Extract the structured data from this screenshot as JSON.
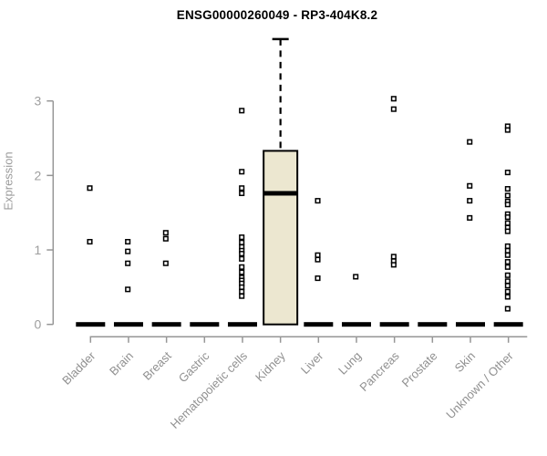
{
  "chart_data": {
    "type": "boxplot",
    "title": "ENSG00000260049 - RP3-404K8.2",
    "ylabel": "Expression",
    "ylim": [
      0,
      3
    ],
    "yticks": [
      0,
      1,
      2,
      3
    ],
    "grid": false,
    "legend": null,
    "colors": {
      "axis": "#969696",
      "tick_label": "#9e9e9e",
      "category_label": "#909090",
      "box_fill": "#ece7d0",
      "box_border": "#000000",
      "median": "#000000",
      "zero_bar": "#000000",
      "point_stroke": "#000000",
      "point_fill": "#ffffff",
      "title": "#000000"
    },
    "categories": [
      "Bladder",
      "Brain",
      "Breast",
      "Gastric",
      "Hematopoietic cells",
      "Kidney",
      "Liver",
      "Lung",
      "Pancreas",
      "Prostate",
      "Skin",
      "Unknown / Other"
    ],
    "series": [
      {
        "category": "Bladder",
        "q1": 0,
        "median": 0,
        "q3": 0,
        "points": [
          1.83,
          1.11
        ]
      },
      {
        "category": "Brain",
        "q1": 0,
        "median": 0,
        "q3": 0,
        "points": [
          1.11,
          0.98,
          0.82,
          0.47
        ]
      },
      {
        "category": "Breast",
        "q1": 0,
        "median": 0,
        "q3": 0,
        "points": [
          1.23,
          1.15,
          0.82
        ]
      },
      {
        "category": "Gastric",
        "q1": 0,
        "median": 0,
        "q3": 0,
        "points": []
      },
      {
        "category": "Hematopoietic cells",
        "q1": 0,
        "median": 0,
        "q3": 0,
        "points": [
          2.87,
          2.05,
          1.83,
          1.76,
          1.17,
          1.1,
          1.04,
          0.99,
          0.95,
          0.88,
          0.77,
          0.7,
          0.63,
          0.59,
          0.55,
          0.5,
          0.44,
          0.38
        ]
      },
      {
        "category": "Kidney",
        "q1": 0,
        "median": 1.76,
        "q3": 2.33,
        "whisker_high": 3.83,
        "whisker_low": 0,
        "points": []
      },
      {
        "category": "Liver",
        "q1": 0,
        "median": 0,
        "q3": 0,
        "points": [
          1.66,
          0.93,
          0.87,
          0.62
        ]
      },
      {
        "category": "Lung",
        "q1": 0,
        "median": 0,
        "q3": 0,
        "points": [
          0.64
        ]
      },
      {
        "category": "Pancreas",
        "q1": 0,
        "median": 0,
        "q3": 0,
        "points": [
          3.03,
          2.89,
          0.91,
          0.85,
          0.8
        ]
      },
      {
        "category": "Prostate",
        "q1": 0,
        "median": 0,
        "q3": 0,
        "points": []
      },
      {
        "category": "Skin",
        "q1": 0,
        "median": 0,
        "q3": 0,
        "points": [
          2.45,
          1.86,
          1.66,
          1.43
        ]
      },
      {
        "category": "Unknown / Other",
        "q1": 0,
        "median": 0,
        "q3": 0,
        "points": [
          2.66,
          2.61,
          2.04,
          1.82,
          1.73,
          1.65,
          1.61,
          1.48,
          1.44,
          1.36,
          1.3,
          1.25,
          1.05,
          0.99,
          0.93,
          0.84,
          0.77,
          0.66,
          0.58,
          0.52,
          0.44,
          0.37,
          0.21
        ]
      }
    ]
  }
}
